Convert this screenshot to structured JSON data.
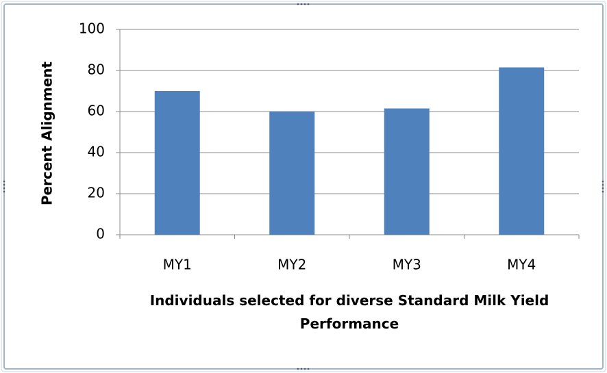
{
  "chart_data": {
    "type": "bar",
    "categories": [
      "MY1",
      "MY2",
      "MY3",
      "MY4"
    ],
    "values": [
      70,
      60,
      61.5,
      81.5
    ],
    "color": "#4f81bd",
    "ylim": [
      0,
      100
    ],
    "yticks": [
      0,
      20,
      40,
      60,
      80,
      100
    ],
    "grid": true,
    "y_label": "Percent Alignment",
    "x_label": "Individuals selected for diverse Standard Milk Yield Performance"
  }
}
